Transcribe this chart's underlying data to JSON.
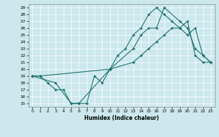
{
  "xlabel": "Humidex (Indice chaleur)",
  "bg_color": "#cce8ec",
  "line_color": "#1a6e6a",
  "xlim": [
    -0.5,
    23.5
  ],
  "ylim": [
    14.5,
    29.5
  ],
  "xticks": [
    0,
    1,
    2,
    3,
    4,
    5,
    6,
    7,
    8,
    9,
    10,
    11,
    12,
    13,
    14,
    15,
    16,
    17,
    18,
    19,
    20,
    21,
    22,
    23
  ],
  "yticks": [
    15,
    16,
    17,
    18,
    19,
    20,
    21,
    22,
    23,
    24,
    25,
    26,
    27,
    28,
    29
  ],
  "curve1_x": [
    0,
    1,
    2,
    3,
    4,
    5,
    6,
    7,
    8,
    9,
    10,
    11,
    12,
    13,
    14,
    15,
    16,
    17,
    18,
    19,
    20,
    21,
    22,
    23
  ],
  "curve1_y": [
    19,
    19,
    18,
    17,
    17,
    15,
    15,
    15,
    19,
    18,
    20,
    22,
    23,
    25,
    26,
    28,
    29,
    28,
    27,
    26,
    25,
    26,
    22,
    21
  ],
  "curve2_x": [
    0,
    3,
    5,
    6,
    10,
    13,
    14,
    15,
    16,
    17,
    19,
    20,
    21,
    22,
    23
  ],
  "curve2_y": [
    19,
    18,
    15,
    15,
    20,
    23,
    25,
    26,
    26,
    29,
    27,
    26,
    23,
    22,
    21
  ],
  "curve3_x": [
    0,
    1,
    10,
    13,
    14,
    15,
    16,
    17,
    18,
    19,
    20,
    21,
    22,
    23
  ],
  "curve3_y": [
    19,
    19,
    20,
    21,
    22,
    23,
    24,
    25,
    26,
    26,
    27,
    22,
    21,
    21
  ]
}
